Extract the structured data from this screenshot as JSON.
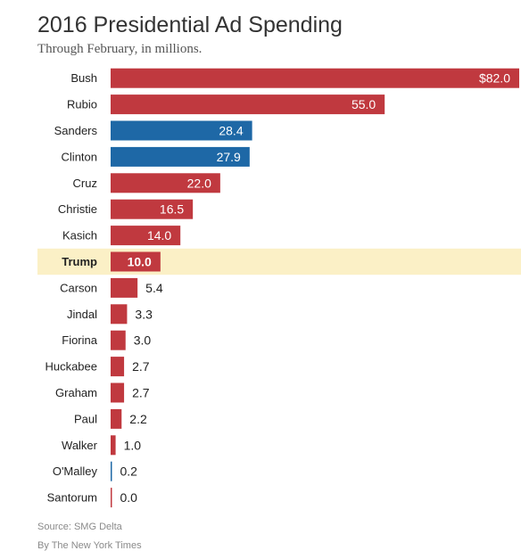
{
  "title": "2016 Presidential Ad Spending",
  "subtitle": "Through February, in millions.",
  "source": "Source: SMG Delta",
  "credit": "By The New York Times",
  "colors": {
    "republican": "#c0393f",
    "democrat": "#1e68a6",
    "highlight_band": "#fbf0c6",
    "label_inside": "#ffffff",
    "label_outside": "#222222"
  },
  "chart_data": {
    "type": "bar",
    "orientation": "horizontal",
    "categories": [
      "Bush",
      "Rubio",
      "Sanders",
      "Clinton",
      "Cruz",
      "Christie",
      "Kasich",
      "Trump",
      "Carson",
      "Jindal",
      "Fiorina",
      "Huckabee",
      "Graham",
      "Paul",
      "Walker",
      "O'Malley",
      "Santorum"
    ],
    "values": [
      82.0,
      55.0,
      28.4,
      27.9,
      22.0,
      16.5,
      14.0,
      10.0,
      5.4,
      3.3,
      3.0,
      2.7,
      2.7,
      2.2,
      1.0,
      0.2,
      0.0
    ],
    "value_labels": [
      "$82.0",
      "55.0",
      "28.4",
      "27.9",
      "22.0",
      "16.5",
      "14.0",
      "10.0",
      "5.4",
      "3.3",
      "3.0",
      "2.7",
      "2.7",
      "2.2",
      "1.0",
      "0.2",
      "0.0"
    ],
    "party": [
      "R",
      "R",
      "D",
      "D",
      "R",
      "R",
      "R",
      "R",
      "R",
      "R",
      "R",
      "R",
      "R",
      "R",
      "R",
      "D",
      "R"
    ],
    "highlight": "Trump",
    "xlim": [
      0,
      82
    ],
    "title": "2016 Presidential Ad Spending",
    "subtitle": "Through February, in millions."
  }
}
